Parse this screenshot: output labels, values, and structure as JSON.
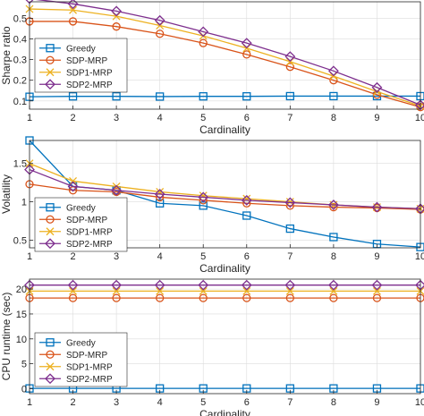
{
  "colors": {
    "greedy": "#0072BD",
    "sdp_mrp": "#D95319",
    "sdp1_mrp": "#EDB120",
    "sdp2_mrp": "#7E2F8E",
    "axis": "#262626",
    "grid": "#dcdcdc"
  },
  "chart_data": [
    {
      "type": "line",
      "xlabel": "Cardinality",
      "ylabel": "Sharpe ratio",
      "x": [
        1,
        2,
        3,
        4,
        5,
        6,
        7,
        8,
        9,
        10
      ],
      "xlim": [
        1,
        10
      ],
      "ylim": [
        0.06,
        0.58
      ],
      "yticks": [
        0.1,
        0.2,
        0.3,
        0.4,
        0.5
      ],
      "xticks": [
        1,
        2,
        3,
        4,
        5,
        6,
        7,
        8,
        9,
        10
      ],
      "grid": true,
      "legend": "top-left",
      "series": [
        {
          "name": "Greedy",
          "marker": "square",
          "color_key": "greedy",
          "values": [
            0.12,
            0.122,
            0.122,
            0.121,
            0.122,
            0.122,
            0.123,
            0.123,
            0.123,
            0.123
          ]
        },
        {
          "name": "SDP-MRP",
          "marker": "circle",
          "color_key": "sdp_mrp",
          "values": [
            0.485,
            0.485,
            0.46,
            0.425,
            0.38,
            0.325,
            0.265,
            0.2,
            0.13,
            0.07
          ]
        },
        {
          "name": "SDP1-MRP",
          "marker": "x",
          "color_key": "sdp1_mrp",
          "values": [
            0.545,
            0.54,
            0.51,
            0.465,
            0.415,
            0.355,
            0.29,
            0.22,
            0.145,
            0.075
          ]
        },
        {
          "name": "SDP2-MRP",
          "marker": "diamond",
          "color_key": "sdp2_mrp",
          "values": [
            0.595,
            0.57,
            0.535,
            0.49,
            0.435,
            0.38,
            0.315,
            0.245,
            0.165,
            0.08
          ]
        }
      ]
    },
    {
      "type": "line",
      "xlabel": "Cardinality",
      "ylabel": "Volatility",
      "x": [
        1,
        2,
        3,
        4,
        5,
        6,
        7,
        8,
        9,
        10
      ],
      "xlim": [
        1,
        10
      ],
      "ylim": [
        0.4,
        1.8
      ],
      "yticks": [
        0.5,
        1,
        1.5
      ],
      "xticks": [
        1,
        2,
        3,
        4,
        5,
        6,
        7,
        8,
        9,
        10
      ],
      "grid": true,
      "legend": "bottom-left",
      "series": [
        {
          "name": "Greedy",
          "marker": "square",
          "color_key": "greedy",
          "values": [
            1.8,
            1.2,
            1.15,
            0.98,
            0.95,
            0.82,
            0.65,
            0.54,
            0.45,
            0.41
          ]
        },
        {
          "name": "SDP-MRP",
          "marker": "circle",
          "color_key": "sdp_mrp",
          "values": [
            1.23,
            1.15,
            1.13,
            1.06,
            1.02,
            0.98,
            0.95,
            0.93,
            0.92,
            0.9
          ]
        },
        {
          "name": "SDP1-MRP",
          "marker": "x",
          "color_key": "sdp1_mrp",
          "values": [
            1.5,
            1.27,
            1.2,
            1.13,
            1.08,
            1.04,
            1.0,
            0.96,
            0.93,
            0.91
          ]
        },
        {
          "name": "SDP2-MRP",
          "marker": "diamond",
          "color_key": "sdp2_mrp",
          "values": [
            1.42,
            1.2,
            1.15,
            1.1,
            1.06,
            1.02,
            0.99,
            0.96,
            0.93,
            0.91
          ]
        }
      ]
    },
    {
      "type": "line",
      "xlabel": "Cardinality",
      "ylabel": "CPU runtime (sec)",
      "x": [
        1,
        2,
        3,
        4,
        5,
        6,
        7,
        8,
        9,
        10
      ],
      "xlim": [
        1,
        10
      ],
      "ylim": [
        -1,
        22
      ],
      "yticks": [
        0,
        5,
        10,
        15,
        20
      ],
      "xticks": [
        1,
        2,
        3,
        4,
        5,
        6,
        7,
        8,
        9,
        10
      ],
      "grid": true,
      "legend": "bottom-left",
      "series": [
        {
          "name": "Greedy",
          "marker": "square",
          "color_key": "greedy",
          "values": [
            0.05,
            0.05,
            0.05,
            0.05,
            0.05,
            0.05,
            0.05,
            0.05,
            0.05,
            0.05
          ]
        },
        {
          "name": "SDP-MRP",
          "marker": "circle",
          "color_key": "sdp_mrp",
          "values": [
            18.2,
            18.2,
            18.2,
            18.2,
            18.2,
            18.2,
            18.2,
            18.2,
            18.2,
            18.2
          ]
        },
        {
          "name": "SDP1-MRP",
          "marker": "x",
          "color_key": "sdp1_mrp",
          "values": [
            19.6,
            19.6,
            19.6,
            19.6,
            19.6,
            19.6,
            19.6,
            19.6,
            19.6,
            19.6
          ]
        },
        {
          "name": "SDP2-MRP",
          "marker": "diamond",
          "color_key": "sdp2_mrp",
          "values": [
            20.8,
            20.8,
            20.8,
            20.8,
            20.8,
            20.8,
            20.8,
            20.8,
            20.8,
            20.8
          ]
        }
      ]
    }
  ]
}
